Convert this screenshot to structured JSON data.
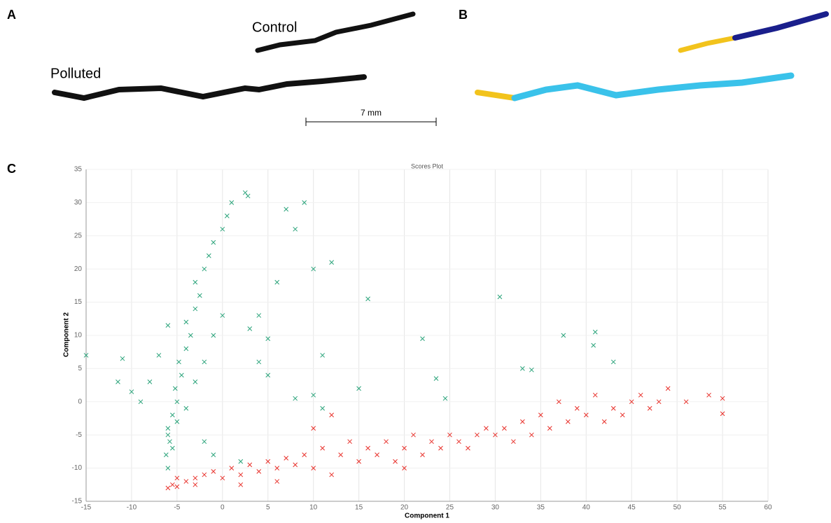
{
  "panels": {
    "a": {
      "label": "A",
      "control": "Control",
      "polluted": "Polluted",
      "scale": "7 mm"
    },
    "b": {
      "label": "B"
    },
    "c": {
      "label": "C"
    }
  },
  "chart_data": {
    "type": "scatter",
    "title": "Scores Plot",
    "xlabel": "Component 1",
    "ylabel": "Component 2",
    "xlim": [
      -15,
      60
    ],
    "xticks": [
      -15,
      -10,
      -5,
      0,
      5,
      10,
      15,
      20,
      25,
      30,
      35,
      40,
      45,
      50,
      55,
      60
    ],
    "ylim": [
      -15,
      35
    ],
    "yticks": [
      -15,
      -10,
      -5,
      0,
      5,
      10,
      15,
      20,
      25,
      30,
      35
    ],
    "grid": true,
    "series": [
      {
        "color": "#2aa37a",
        "x": [
          -6,
          -6.2,
          -5.8,
          -6,
          -5.5,
          -5,
          -5.2,
          -4.5,
          -4.8,
          -4,
          -3.5,
          -4,
          -3,
          -2.5,
          -3,
          -2,
          -1.5,
          -1,
          0,
          0.5,
          1,
          2.5,
          2.8,
          -6,
          -5.5,
          -5,
          -4,
          -3,
          -2,
          -1,
          0,
          -6,
          -7,
          -8,
          -10,
          -11.5,
          -9,
          -15,
          -11,
          5,
          4,
          3,
          9,
          8,
          7,
          10,
          12,
          5,
          10,
          11,
          16,
          15,
          22,
          23.5,
          30.5,
          33,
          34,
          37.5,
          41,
          40.8,
          43,
          24.5,
          11,
          8,
          -2,
          -1,
          2,
          4,
          6
        ],
        "values": [
          -10,
          -8,
          -6,
          -4,
          -2,
          0,
          2,
          4,
          6,
          8,
          10,
          12,
          14,
          16,
          18,
          20,
          22,
          24,
          26,
          28,
          30,
          31.5,
          31,
          -5,
          -7,
          -3,
          -1,
          3,
          6,
          10,
          13,
          11.5,
          7,
          3,
          1.5,
          3,
          0,
          7,
          6.5,
          9.5,
          6,
          11,
          30,
          26,
          29,
          20,
          21,
          4,
          1,
          7,
          15.5,
          2,
          9.5,
          3.5,
          15.8,
          5,
          4.8,
          10,
          10.5,
          8.5,
          6,
          0.5,
          -1,
          0.5,
          -6,
          -8,
          -9,
          13,
          18
        ]
      },
      {
        "color": "#e8302a",
        "x": [
          -6,
          -5.5,
          -5,
          -4,
          -3,
          -2,
          -1,
          0,
          1,
          2,
          3,
          4,
          5,
          6,
          7,
          8,
          9,
          10,
          11,
          12,
          13,
          14,
          15,
          16,
          17,
          18,
          19,
          20,
          21,
          22,
          23,
          24,
          25,
          26,
          27,
          28,
          29,
          30,
          31,
          32,
          33,
          34,
          35,
          36,
          37,
          38,
          39,
          40,
          41,
          42,
          43,
          44,
          45,
          46,
          47,
          48,
          49,
          51,
          53.5,
          55,
          55,
          10,
          12,
          6,
          2,
          20,
          -5,
          -3
        ],
        "values": [
          -13,
          -12.5,
          -12.8,
          -12,
          -11.5,
          -11,
          -10.5,
          -11.5,
          -10,
          -11,
          -9.5,
          -10.5,
          -9,
          -10,
          -8.5,
          -9.5,
          -8,
          -10,
          -7,
          -11,
          -8,
          -6,
          -9,
          -7,
          -8,
          -6,
          -9,
          -7,
          -5,
          -8,
          -6,
          -7,
          -5,
          -6,
          -7,
          -5,
          -4,
          -5,
          -4,
          -6,
          -3,
          -5,
          -2,
          -4,
          0,
          -3,
          -1,
          -2,
          1,
          -3,
          -1,
          -2,
          0,
          1,
          -1,
          0,
          2,
          0,
          1,
          0.5,
          -1.8,
          -4,
          -2,
          -12,
          -12.5,
          -10,
          -11.5,
          -12.5
        ]
      }
    ]
  }
}
